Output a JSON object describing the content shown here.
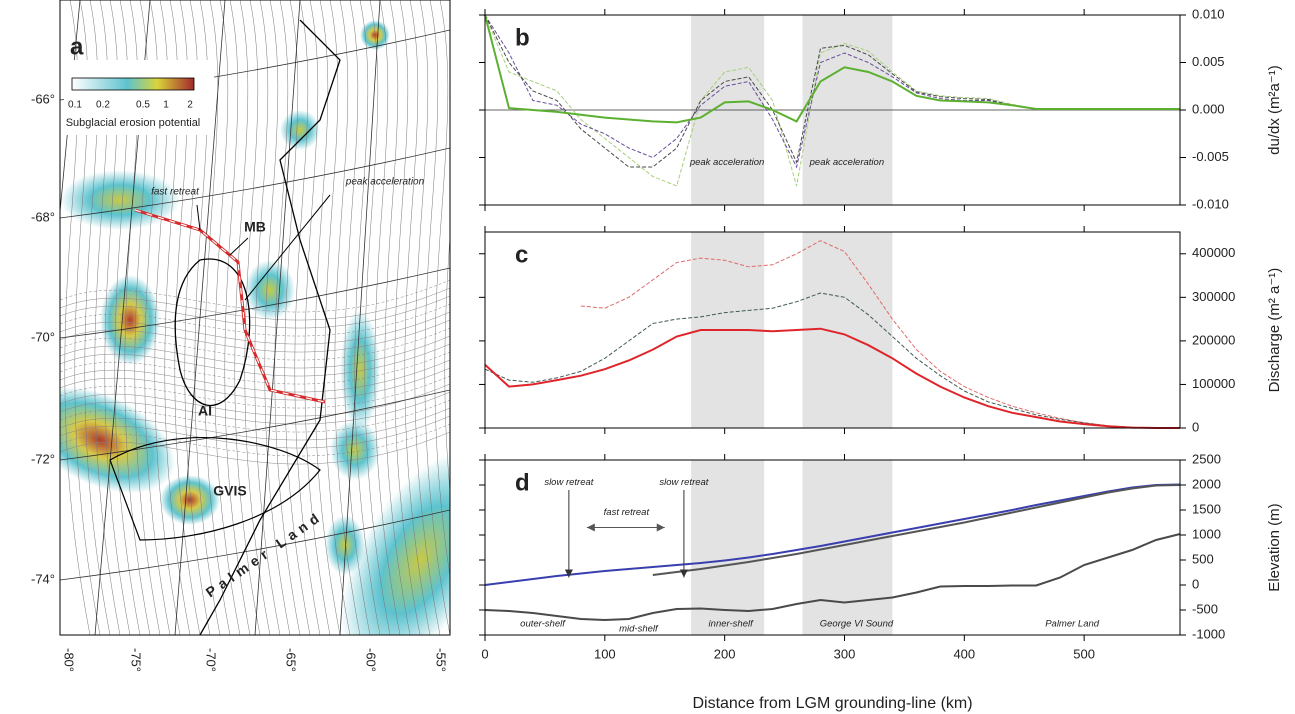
{
  "map": {
    "panel": "a",
    "lat_labels": [
      "-66°",
      "-68°",
      "-70°",
      "-72°",
      "-74°"
    ],
    "lon_labels": [
      "-80°",
      "-75°",
      "-70°",
      "-65°",
      "-60°",
      "-55°"
    ],
    "colorbar_ticks": [
      "0.1",
      "0.2",
      "0.5",
      "1",
      "2"
    ],
    "colorbar_label": "Subglacial erosion potential",
    "annotations": [
      "fast retreat",
      "peak acceleration",
      "MB",
      "AI",
      "GVIS",
      "Palmer Land"
    ]
  },
  "chart_data": [
    {
      "type": "line",
      "panel": "b",
      "ylabel": "du/dx (m²a⁻¹)",
      "x": [
        0,
        20,
        40,
        60,
        80,
        100,
        120,
        140,
        160,
        180,
        200,
        220,
        240,
        260,
        280,
        300,
        320,
        340,
        360,
        380,
        400,
        420,
        440,
        460,
        480,
        500,
        520,
        540,
        560,
        580
      ],
      "xlim": [
        0,
        580
      ],
      "xticks": [
        0,
        100,
        200,
        300,
        400,
        500
      ],
      "xtick_labels": false,
      "ylim": [
        -0.01,
        0.01
      ],
      "yticks": [
        {
          "value": -0.01,
          "label": "-0.010"
        },
        {
          "value": -0.005,
          "label": "-0.005"
        },
        {
          "value": 0,
          "label": "0.000"
        },
        {
          "value": 0.005,
          "label": "0.005"
        },
        {
          "value": 0.01,
          "label": "0.010"
        }
      ],
      "shaded_regions": [
        [
          172,
          233
        ],
        [
          265,
          340
        ]
      ],
      "annotations": [
        "peak acceleration",
        "peak acceleration"
      ],
      "series": [
        {
          "color": "#a6cf7a",
          "dashed": true,
          "values": [
            0.01,
            0.004,
            0.003,
            0.002,
            -0.001,
            -0.003,
            -0.005,
            -0.007,
            -0.008,
            0.001,
            0.004,
            0.0045,
            0.001,
            -0.008,
            0.006,
            0.007,
            0.0062,
            0.004,
            0.002,
            0.0015,
            0.0013,
            0.0012,
            0.0006,
            0.0001,
            0.0001,
            0.0001,
            0.0001,
            0.0001,
            0.0001,
            0.0001
          ]
        },
        {
          "color": "#6a4c9c",
          "dashed": true,
          "values": [
            0.01,
            0.006,
            0.001,
            0.0005,
            -0.0015,
            -0.0025,
            -0.004,
            -0.005,
            -0.003,
            0.0005,
            0.0025,
            0.003,
            -0.001,
            -0.006,
            0.005,
            0.006,
            0.005,
            0.0035,
            0.0018,
            0.0012,
            0.001,
            0.001,
            0.0005,
            0.0001,
            0.0001,
            0.0001,
            0.0001,
            0.0001,
            0.0001,
            0.0001
          ]
        },
        {
          "color": "#4a4a4a",
          "dashed": true,
          "values": [
            0.01,
            0.005,
            0.002,
            0.001,
            -0.002,
            -0.004,
            -0.006,
            -0.006,
            -0.004,
            0.001,
            0.003,
            0.0035,
            0.0,
            -0.0055,
            0.0065,
            0.0068,
            0.0058,
            0.0038,
            0.0019,
            0.0014,
            0.0012,
            0.0011,
            0.0005,
            0.0001,
            0.0001,
            0.0001,
            0.0001,
            0.0001,
            0.0001,
            0.0001
          ]
        },
        {
          "color": "#5cb030",
          "dashed": false,
          "values": [
            0.01,
            0.0002,
            0.0,
            -0.0002,
            -0.0005,
            -0.0008,
            -0.001,
            -0.0012,
            -0.0013,
            -0.0008,
            0.0008,
            0.0009,
            0.0,
            -0.0012,
            0.003,
            0.0045,
            0.004,
            0.003,
            0.0015,
            0.001,
            0.0009,
            0.0008,
            0.0005,
            0.0001,
            0.0001,
            0.0001,
            0.0001,
            0.0001,
            0.0001,
            0.0001
          ]
        }
      ]
    },
    {
      "type": "line",
      "panel": "c",
      "ylabel": "Discharge (m² a⁻¹)",
      "x": [
        0,
        20,
        40,
        60,
        80,
        100,
        120,
        140,
        160,
        180,
        200,
        220,
        240,
        260,
        280,
        300,
        320,
        340,
        360,
        380,
        400,
        420,
        440,
        460,
        480,
        500,
        520,
        540,
        560,
        580
      ],
      "xlim": [
        0,
        580
      ],
      "xticks": [
        0,
        100,
        200,
        300,
        400,
        500
      ],
      "xtick_labels": false,
      "ylim": [
        0,
        450000
      ],
      "yticks": [
        0,
        100000,
        200000,
        300000,
        400000
      ],
      "shaded_regions": [
        [
          172,
          233
        ],
        [
          265,
          340
        ]
      ],
      "series": [
        {
          "color": "#e06a6a",
          "dashed": true,
          "values": [
            null,
            null,
            null,
            null,
            280000,
            275000,
            300000,
            340000,
            380000,
            390000,
            385000,
            370000,
            375000,
            400000,
            430000,
            405000,
            330000,
            250000,
            180000,
            130000,
            95000,
            70000,
            50000,
            35000,
            22000,
            12000,
            5000,
            1500,
            0,
            0
          ]
        },
        {
          "color": "#3f5a55",
          "dashed": true,
          "values": [
            135000,
            110000,
            105000,
            115000,
            130000,
            160000,
            200000,
            240000,
            250000,
            255000,
            265000,
            270000,
            275000,
            290000,
            310000,
            300000,
            260000,
            210000,
            160000,
            120000,
            85000,
            60000,
            45000,
            30000,
            20000,
            12000,
            5000,
            1500,
            0,
            0
          ]
        },
        {
          "color": "#e0252a",
          "dashed": false,
          "values": [
            145000,
            95000,
            100000,
            110000,
            120000,
            135000,
            155000,
            180000,
            210000,
            225000,
            225000,
            225000,
            222000,
            225000,
            228000,
            215000,
            190000,
            160000,
            125000,
            95000,
            70000,
            50000,
            35000,
            25000,
            15000,
            9000,
            4000,
            1000,
            0,
            0
          ]
        }
      ]
    },
    {
      "type": "line",
      "panel": "d",
      "ylabel": "Elevation (m)",
      "xlabel": "Distance from LGM grounding-line (km)",
      "x": [
        0,
        20,
        40,
        60,
        80,
        100,
        120,
        140,
        160,
        180,
        200,
        220,
        240,
        260,
        280,
        300,
        320,
        340,
        360,
        380,
        400,
        420,
        440,
        460,
        480,
        500,
        520,
        540,
        560,
        580
      ],
      "xlim": [
        0,
        580
      ],
      "xticks": [
        0,
        100,
        200,
        300,
        400,
        500
      ],
      "xtick_labels": true,
      "ylim": [
        -1000,
        2500
      ],
      "yticks": [
        -1000,
        -500,
        0,
        500,
        1000,
        1500,
        2000,
        2500
      ],
      "shaded_regions": [
        [
          172,
          233
        ],
        [
          265,
          340
        ]
      ],
      "annotations": [
        "slow retreat",
        "fast retreat",
        "slow retreat",
        "outer-shelf",
        "mid-shelf",
        "inner-shelf",
        "George VI Sound",
        "Palmer Land"
      ],
      "series": [
        {
          "color": "#3a3fb0",
          "dashed": false,
          "values": [
            0,
            60,
            120,
            180,
            230,
            280,
            320,
            360,
            400,
            440,
            490,
            550,
            620,
            700,
            780,
            870,
            960,
            1050,
            1140,
            1230,
            1320,
            1410,
            1500,
            1600,
            1690,
            1780,
            1870,
            1950,
            2000,
            2010
          ]
        },
        {
          "color": "#555555",
          "dashed": false,
          "values": [
            null,
            null,
            null,
            null,
            null,
            null,
            null,
            200,
            260,
            320,
            390,
            460,
            540,
            620,
            710,
            800,
            890,
            980,
            1070,
            1160,
            1250,
            1350,
            1450,
            1550,
            1650,
            1750,
            1850,
            1930,
            1990,
            2000
          ]
        },
        {
          "color": "#4a4a4a",
          "dashed": false,
          "values": [
            -500,
            -520,
            -560,
            -620,
            -680,
            -700,
            -680,
            -560,
            -480,
            -470,
            -500,
            -520,
            -480,
            -380,
            -300,
            -350,
            -300,
            -250,
            -150,
            -30,
            -20,
            -20,
            -10,
            -10,
            150,
            400,
            550,
            700,
            900,
            1020
          ]
        }
      ]
    }
  ]
}
